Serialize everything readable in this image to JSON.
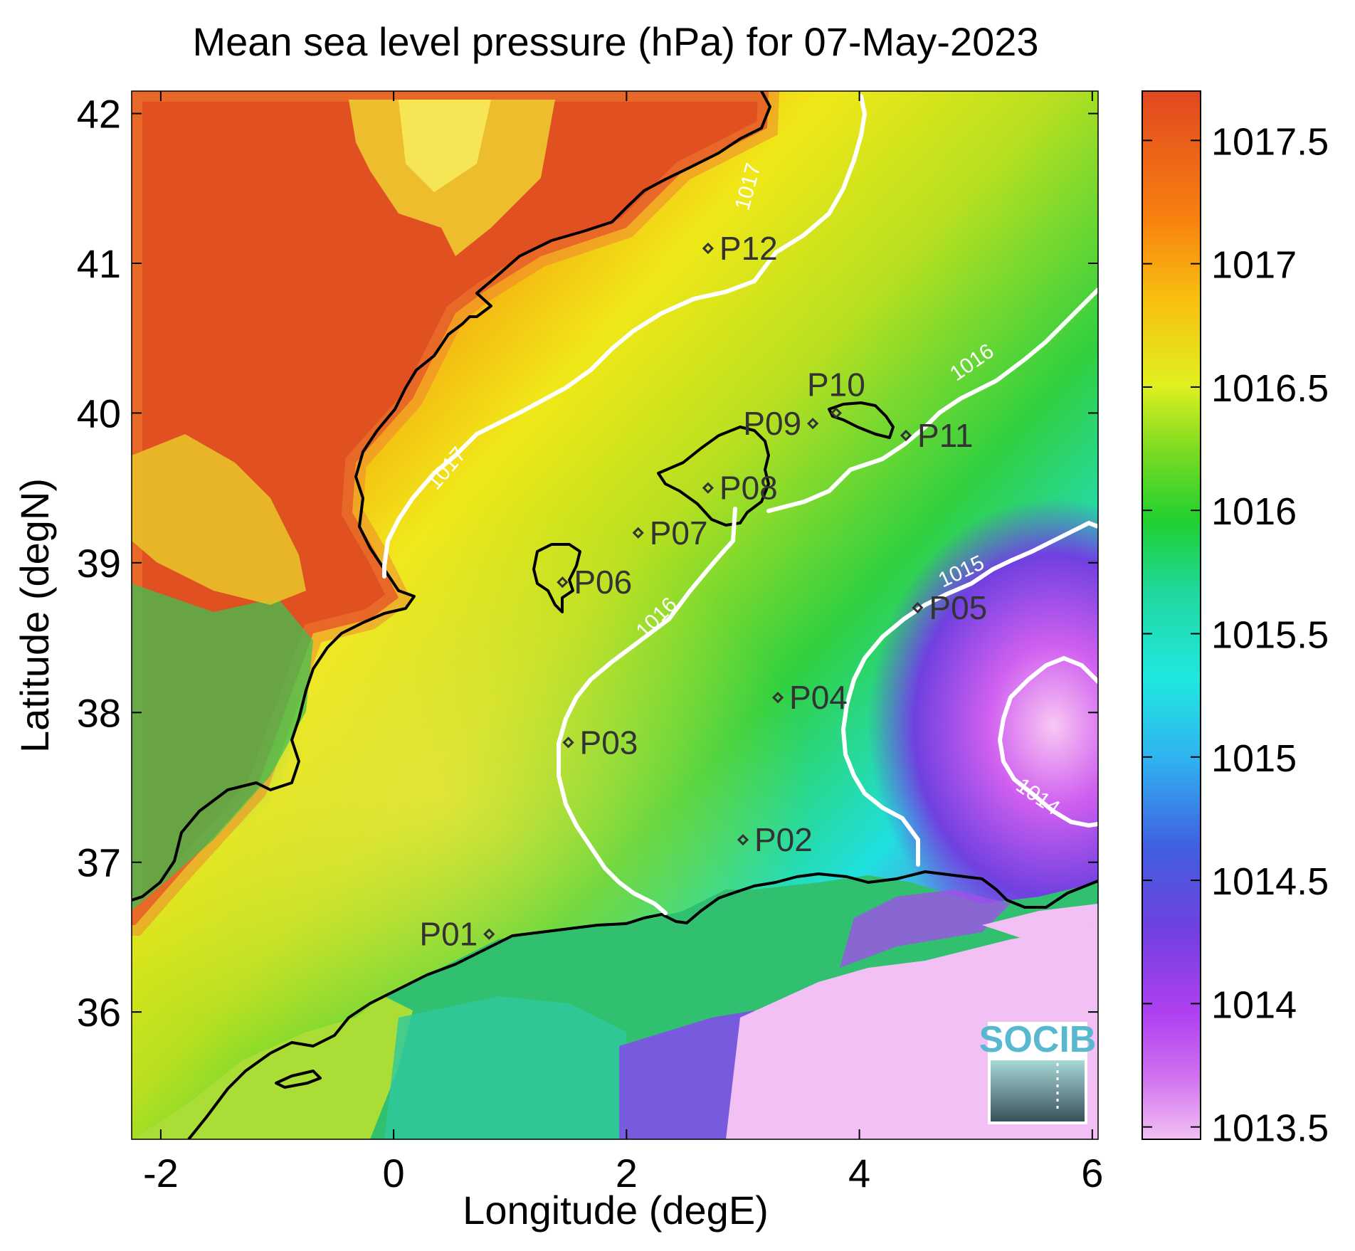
{
  "title": "Mean sea level pressure (hPa) for 07-May-2023",
  "xlabel": "Longitude (degE)",
  "ylabel": "Latitude (degN)",
  "logo": "SOCIB",
  "chart_data": {
    "type": "heatmap",
    "xlim": [
      -2.25,
      6.05
    ],
    "ylim": [
      35.15,
      42.15
    ],
    "x_ticks": [
      "-2",
      "0",
      "2",
      "4",
      "6"
    ],
    "y_ticks": [
      "36",
      "37",
      "38",
      "39",
      "40",
      "41",
      "42"
    ],
    "colorbar": {
      "range": [
        1013.45,
        1017.7
      ],
      "ticks": [
        "1013.5",
        "1014",
        "1014.5",
        "1015",
        "1015.5",
        "1016",
        "1016.5",
        "1017",
        "1017.5"
      ],
      "colors": [
        "#f2c0f2",
        "#c040f0",
        "#7040e0",
        "#3080e8",
        "#20e8f0",
        "#20d8a0",
        "#20d030",
        "#a0e020",
        "#f0f020",
        "#f8b010",
        "#f06010",
        "#e04820"
      ]
    },
    "contour_labels": [
      {
        "text": "1017",
        "lon": 3.1,
        "lat": 41.5,
        "angle": -75
      },
      {
        "text": "1017",
        "lon": 0.5,
        "lat": 39.6,
        "angle": -50
      },
      {
        "text": "1016",
        "lon": 5.0,
        "lat": 40.3,
        "angle": -35
      },
      {
        "text": "1016",
        "lon": 2.3,
        "lat": 38.6,
        "angle": -45
      },
      {
        "text": "1015",
        "lon": 4.9,
        "lat": 38.9,
        "angle": -25
      },
      {
        "text": "1014",
        "lon": 5.5,
        "lat": 37.4,
        "angle": 35
      }
    ],
    "stations": [
      {
        "name": "P01",
        "lon": 0.82,
        "lat": 36.52,
        "label_side": "left"
      },
      {
        "name": "P02",
        "lon": 3.0,
        "lat": 37.15,
        "label_side": "right"
      },
      {
        "name": "P03",
        "lon": 1.5,
        "lat": 37.8,
        "label_side": "right"
      },
      {
        "name": "P04",
        "lon": 3.3,
        "lat": 38.1,
        "label_side": "right"
      },
      {
        "name": "P05",
        "lon": 4.5,
        "lat": 38.7,
        "label_side": "right"
      },
      {
        "name": "P06",
        "lon": 1.45,
        "lat": 38.87,
        "label_side": "right"
      },
      {
        "name": "P07",
        "lon": 2.1,
        "lat": 39.2,
        "label_side": "right"
      },
      {
        "name": "P08",
        "lon": 2.7,
        "lat": 39.5,
        "label_side": "right"
      },
      {
        "name": "P09",
        "lon": 3.6,
        "lat": 39.93,
        "label_side": "left"
      },
      {
        "name": "P10",
        "lon": 3.8,
        "lat": 40.0,
        "label_side": "above"
      },
      {
        "name": "P11",
        "lon": 4.4,
        "lat": 39.85,
        "label_side": "right"
      },
      {
        "name": "P12",
        "lon": 2.7,
        "lat": 41.1,
        "label_side": "right"
      }
    ]
  }
}
